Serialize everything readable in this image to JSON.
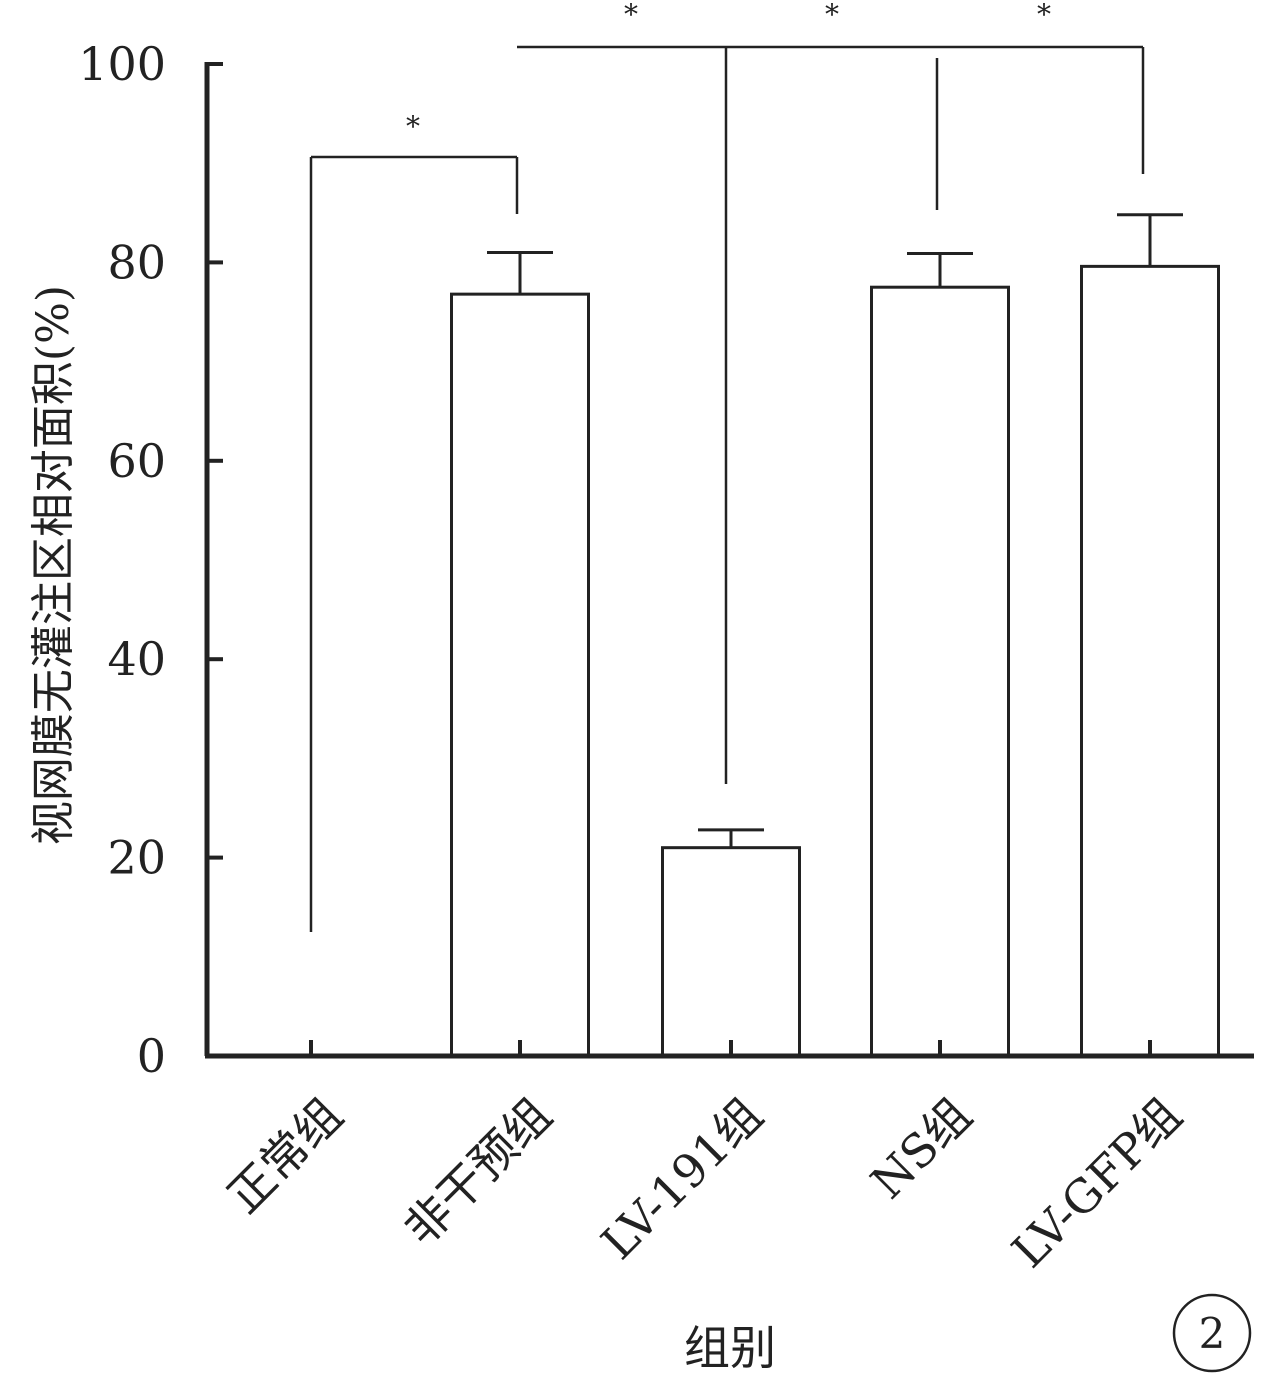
{
  "chart_data": {
    "type": "bar",
    "categories": [
      "正常组",
      "非干预组",
      "LV-191组",
      "NS组",
      "LV-GFP组"
    ],
    "values": [
      0,
      76.8,
      21.0,
      77.5,
      79.6
    ],
    "errors": [
      0,
      4.2,
      1.8,
      3.4,
      5.2
    ],
    "ylabel": "视网膜无灌注区相对面积(%)",
    "xlabel": "组别",
    "ylim": [
      0,
      100
    ],
    "yticks": [
      0,
      20,
      40,
      60,
      80,
      100
    ],
    "grid": false,
    "bar_fill": "#ffffff",
    "line_color": "#222222",
    "significance": [
      {
        "from": 0,
        "to": 1,
        "label": "*"
      },
      {
        "from": 1,
        "to": 2,
        "label": "*"
      },
      {
        "from": 1,
        "to": 3,
        "label": "*"
      },
      {
        "from": 1,
        "to": 4,
        "label": "*"
      }
    ],
    "figure_number": "2"
  }
}
